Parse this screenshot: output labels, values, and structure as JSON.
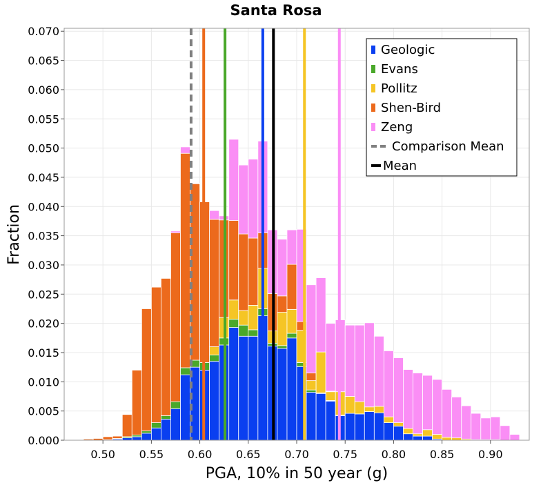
{
  "chart_data": {
    "type": "bar",
    "title": "Santa Rosa",
    "xlabel": "PGA, 10% in 50 year (g)",
    "ylabel": "Fraction",
    "xlim": [
      0.46,
      0.94
    ],
    "ylim": [
      0.0,
      0.0705
    ],
    "xticks": [
      "0.50",
      "0.55",
      "0.60",
      "0.65",
      "0.70",
      "0.75",
      "0.80",
      "0.85",
      "0.90"
    ],
    "yticks": [
      "0.000",
      "0.005",
      "0.010",
      "0.015",
      "0.020",
      "0.025",
      "0.030",
      "0.035",
      "0.040",
      "0.045",
      "0.050",
      "0.055",
      "0.060",
      "0.065",
      "0.070"
    ],
    "bin_width": 0.01,
    "stacked": true,
    "grid": true,
    "legend_position": "top-right",
    "bin_centers": [
      0.475,
      0.485,
      0.495,
      0.505,
      0.515,
      0.525,
      0.535,
      0.545,
      0.555,
      0.565,
      0.575,
      0.585,
      0.595,
      0.605,
      0.615,
      0.625,
      0.635,
      0.645,
      0.655,
      0.665,
      0.675,
      0.685,
      0.695,
      0.705,
      0.715,
      0.725,
      0.735,
      0.745,
      0.755,
      0.765,
      0.775,
      0.785,
      0.795,
      0.805,
      0.815,
      0.825,
      0.835,
      0.845,
      0.855,
      0.865,
      0.875,
      0.885,
      0.895,
      0.905,
      0.915,
      0.925
    ],
    "series": [
      {
        "name": "Geologic",
        "color": "#0a3ff0",
        "values": [
          0.0,
          0.0,
          0.0,
          0.0001,
          0.0002,
          0.0004,
          0.0006,
          0.0012,
          0.0021,
          0.0036,
          0.0054,
          0.0112,
          0.0125,
          0.012,
          0.0135,
          0.0163,
          0.0193,
          0.0178,
          0.0178,
          0.0213,
          0.0161,
          0.0157,
          0.0175,
          0.0126,
          0.0082,
          0.008,
          0.0067,
          0.0042,
          0.0046,
          0.0045,
          0.0049,
          0.0047,
          0.003,
          0.0024,
          0.0011,
          0.0007,
          0.0007,
          0.0002,
          0.0,
          0.0,
          0.0,
          0.0,
          0.0,
          0.0,
          0.0,
          0.0
        ]
      },
      {
        "name": "Evans",
        "color": "#4aa82a",
        "values": [
          0.0,
          0.0,
          0.0,
          0.0,
          0.0001,
          0.0002,
          0.0003,
          0.0004,
          0.0009,
          0.0006,
          0.0012,
          0.0012,
          0.0012,
          0.0013,
          0.0011,
          0.0012,
          0.0014,
          0.0019,
          0.0011,
          0.0012,
          0.0005,
          0.0005,
          0.0008,
          0.0007,
          0.0004,
          0.0001,
          0.0001,
          0.0001,
          0.0,
          0.0,
          0.0,
          0.0,
          0.0,
          0.0,
          0.0,
          0.0,
          0.0,
          0.0,
          0.0,
          0.0,
          0.0,
          0.0,
          0.0,
          0.0,
          0.0,
          0.0
        ]
      },
      {
        "name": "Pollitz",
        "color": "#f5c525",
        "values": [
          0.0,
          0.0,
          0.0,
          0.0,
          0.0,
          0.0,
          0.0,
          0.0,
          0.0,
          0.0,
          0.0,
          0.0,
          0.0,
          0.0,
          0.0014,
          0.0035,
          0.0033,
          0.0025,
          0.0042,
          0.0069,
          0.0021,
          0.0057,
          0.0041,
          0.0055,
          0.0016,
          0.007,
          0.0015,
          0.004,
          0.0029,
          0.0021,
          0.0008,
          0.0011,
          0.001,
          0.0006,
          0.0009,
          0.0004,
          0.0011,
          0.0008,
          0.0005,
          0.0004,
          0.0002,
          0.0001,
          0.0001,
          0.0001,
          0.0,
          0.0
        ]
      },
      {
        "name": "Shen-Bird",
        "color": "#ec6a1c",
        "values": [
          0.0001,
          0.0002,
          0.0003,
          0.0005,
          0.0004,
          0.0038,
          0.0111,
          0.0209,
          0.0232,
          0.0235,
          0.0289,
          0.0367,
          0.0302,
          0.0275,
          0.0218,
          0.0167,
          0.0136,
          0.0131,
          0.0115,
          0.0061,
          0.0064,
          0.0028,
          0.0077,
          0.0015,
          0.0013,
          0.0,
          0.0001,
          0.0,
          0.0,
          0.0,
          0.0,
          0.0,
          0.0,
          0.0,
          0.0,
          0.0,
          0.0,
          0.0,
          0.0,
          0.0,
          0.0,
          0.0,
          0.0,
          0.0,
          0.0,
          0.0
        ]
      },
      {
        "name": "Zeng",
        "color": "#fa8ef5",
        "values": [
          0.0,
          0.0,
          0.0,
          0.0,
          0.0,
          0.0,
          0.0,
          0.0,
          0.0,
          0.0,
          0.0003,
          0.0011,
          0.0001,
          0.0,
          0.0015,
          0.0007,
          0.0139,
          0.0118,
          0.0135,
          0.0157,
          0.0109,
          0.0097,
          0.0059,
          0.0158,
          0.0151,
          0.0127,
          0.0116,
          0.0123,
          0.0122,
          0.0131,
          0.0144,
          0.012,
          0.0113,
          0.0111,
          0.0101,
          0.0104,
          0.0093,
          0.0094,
          0.0082,
          0.007,
          0.0057,
          0.0045,
          0.0037,
          0.0039,
          0.0025,
          0.001
        ]
      },
      {
        "name": "Comparison Mean",
        "color": "#808080",
        "style": "dashed",
        "x": 0.591
      },
      {
        "name": "Mean",
        "color": "#000000",
        "style": "solid",
        "x": 0.676
      }
    ],
    "model_lines": [
      {
        "model": "Shen-Bird",
        "x": 0.604,
        "color": "#ec6a1c"
      },
      {
        "model": "Evans",
        "x": 0.626,
        "color": "#4aa82a"
      },
      {
        "model": "Geologic",
        "x": 0.665,
        "color": "#0a3ff0"
      },
      {
        "model": "Pollitz",
        "x": 0.708,
        "color": "#f5c525"
      },
      {
        "model": "Zeng",
        "x": 0.744,
        "color": "#fa8ef5"
      }
    ]
  }
}
